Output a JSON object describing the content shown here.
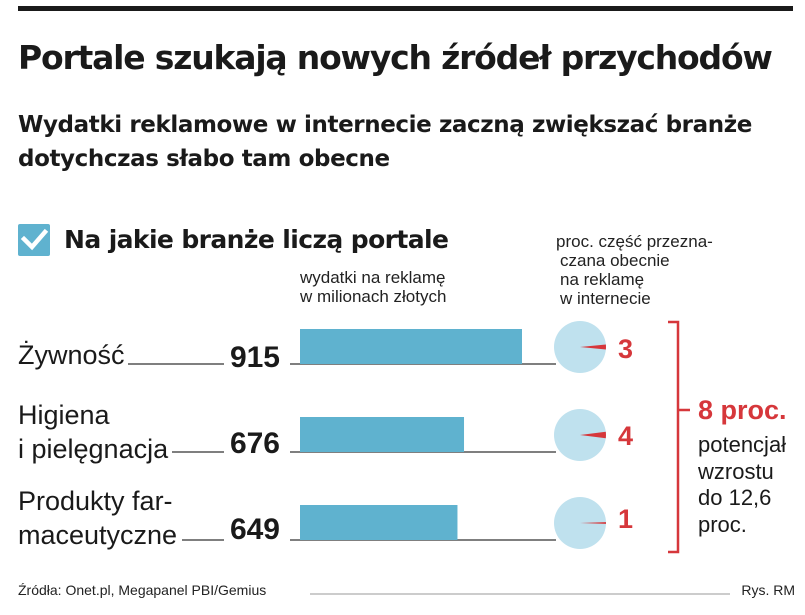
{
  "header": {
    "title": "Portale szukają nowych źródeł przychodów",
    "subtitle": "Wydatki reklamowe w internecie zaczną zwiększać branże dotychczas słabo tam obecne"
  },
  "section": {
    "title": "Na jakie branże liczą portale",
    "icon": "check-icon"
  },
  "chart_data": {
    "type": "bar",
    "categories": [
      "Żywność",
      "Higiena i pielęgnacja",
      "Produkty farmaceutyczne"
    ],
    "category_lines": [
      [
        "Żywność"
      ],
      [
        "Higiena",
        "i pielęgnacja"
      ],
      [
        "Produkty far-",
        "maceutyczne"
      ]
    ],
    "values": [
      915,
      676,
      649
    ],
    "bar_caption_lines": [
      "wydatki na reklamę",
      "w milionach złotych"
    ],
    "percent_caption_lines": [
      "proc. część przezna-",
      "czana obecnie",
      "na reklamę",
      "w internecie"
    ],
    "percent_values": [
      3,
      4,
      1
    ],
    "total": {
      "value": "8 proc.",
      "note_lines": [
        "potencjał",
        "wzrostu",
        "do 12,6",
        "proc."
      ]
    },
    "colors": {
      "bar": "#5fb2cf",
      "circle": "#bfe1ee",
      "accent": "#d6373b",
      "leader": "#333333"
    }
  },
  "footer": {
    "source": "Źródła: Onet.pl, Megapanel PBI/Gemius",
    "credit": "Rys. RM"
  }
}
